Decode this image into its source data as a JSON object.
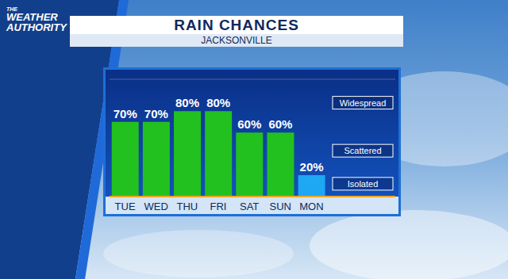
{
  "logo": [
    "THE",
    "WEATHER",
    "AUTHORITY"
  ],
  "chart_data": {
    "type": "bar",
    "title": "RAIN CHANCES",
    "subtitle": "JACKSONVILLE",
    "categories": [
      "TUE",
      "WED",
      "THU",
      "FRI",
      "SAT",
      "SUN",
      "MON"
    ],
    "values": [
      70,
      70,
      80,
      80,
      60,
      60,
      20
    ],
    "value_labels": [
      "70%",
      "70%",
      "80%",
      "80%",
      "60%",
      "60%",
      "20%"
    ],
    "colors": [
      "#22c11f",
      "#22c11f",
      "#22c11f",
      "#22c11f",
      "#22c11f",
      "#22c11f",
      "#1ea7f2"
    ],
    "ylim": [
      0,
      110
    ],
    "yticks": [
      0,
      30,
      65,
      110
    ],
    "grid": true,
    "data_labels": true,
    "tick_labels": "x",
    "annotations": [
      {
        "text": "Widespread",
        "y": 88
      },
      {
        "text": "Scattered",
        "y": 43
      },
      {
        "text": "Isolated",
        "y": 12
      }
    ]
  }
}
